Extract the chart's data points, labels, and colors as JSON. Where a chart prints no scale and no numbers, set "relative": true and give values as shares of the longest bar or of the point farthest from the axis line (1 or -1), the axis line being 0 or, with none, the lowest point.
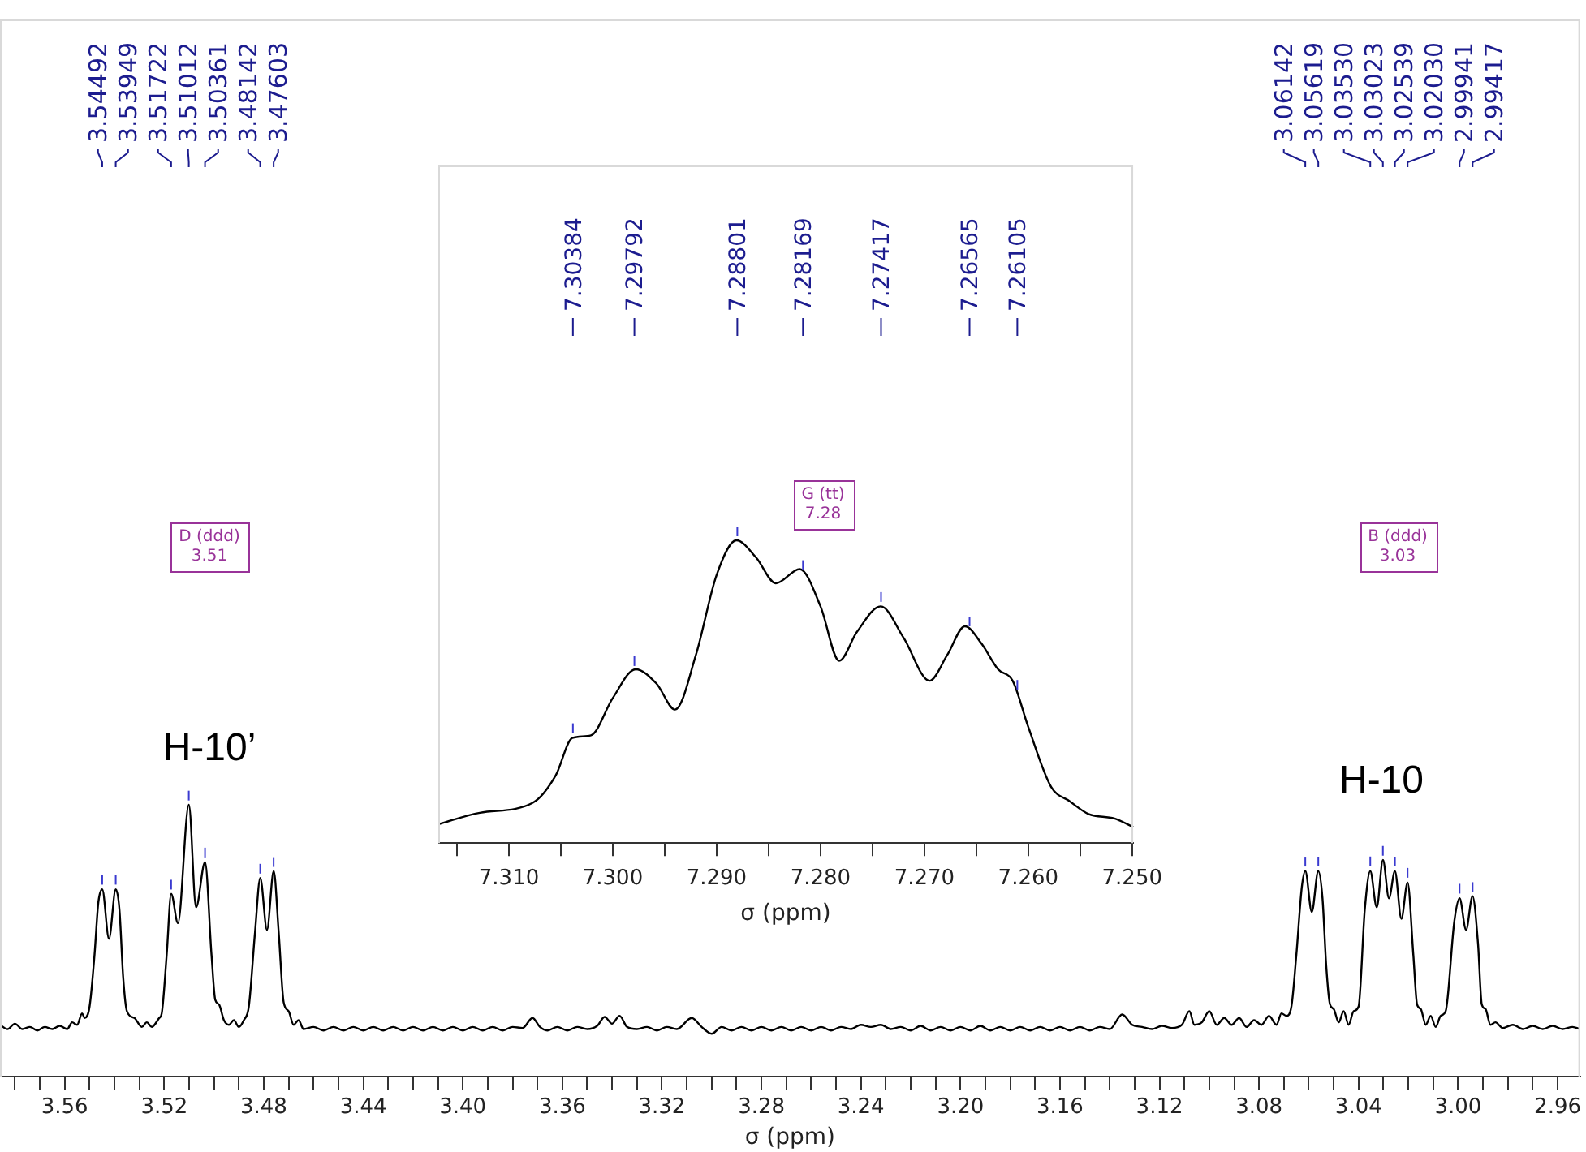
{
  "chart_data": [
    {
      "type": "line",
      "xlabel": "σ (ppm)",
      "relative": true,
      "color": "#000000",
      "grid": false,
      "xlim": [
        3.586,
        2.951
      ],
      "xticks": [
        {
          "value": 3.58,
          "label": null
        },
        {
          "value": 3.57,
          "label": null
        },
        {
          "value": 3.56,
          "label": "3.56"
        },
        {
          "value": 3.55,
          "label": null
        },
        {
          "value": 3.54,
          "label": null
        },
        {
          "value": 3.53,
          "label": null
        },
        {
          "value": 3.52,
          "label": "3.52"
        },
        {
          "value": 3.51,
          "label": null
        },
        {
          "value": 3.5,
          "label": null
        },
        {
          "value": 3.49,
          "label": null
        },
        {
          "value": 3.48,
          "label": "3.48"
        },
        {
          "value": 3.47,
          "label": null
        },
        {
          "value": 3.46,
          "label": null
        },
        {
          "value": 3.45,
          "label": null
        },
        {
          "value": 3.44,
          "label": "3.44"
        },
        {
          "value": 3.43,
          "label": null
        },
        {
          "value": 3.42,
          "label": null
        },
        {
          "value": 3.41,
          "label": null
        },
        {
          "value": 3.4,
          "label": "3.40"
        },
        {
          "value": 3.39,
          "label": null
        },
        {
          "value": 3.38,
          "label": null
        },
        {
          "value": 3.37,
          "label": null
        },
        {
          "value": 3.36,
          "label": "3.36"
        },
        {
          "value": 3.35,
          "label": null
        },
        {
          "value": 3.34,
          "label": null
        },
        {
          "value": 3.33,
          "label": null
        },
        {
          "value": 3.32,
          "label": "3.32"
        },
        {
          "value": 3.31,
          "label": null
        },
        {
          "value": 3.3,
          "label": null
        },
        {
          "value": 3.29,
          "label": null
        },
        {
          "value": 3.28,
          "label": "3.28"
        },
        {
          "value": 3.27,
          "label": null
        },
        {
          "value": 3.26,
          "label": null
        },
        {
          "value": 3.25,
          "label": null
        },
        {
          "value": 3.24,
          "label": "3.24"
        },
        {
          "value": 3.23,
          "label": null
        },
        {
          "value": 3.22,
          "label": null
        },
        {
          "value": 3.21,
          "label": null
        },
        {
          "value": 3.2,
          "label": "3.20"
        },
        {
          "value": 3.19,
          "label": null
        },
        {
          "value": 3.18,
          "label": null
        },
        {
          "value": 3.17,
          "label": null
        },
        {
          "value": 3.16,
          "label": "3.16"
        },
        {
          "value": 3.15,
          "label": null
        },
        {
          "value": 3.14,
          "label": null
        },
        {
          "value": 3.13,
          "label": null
        },
        {
          "value": 3.12,
          "label": "3.12"
        },
        {
          "value": 3.11,
          "label": null
        },
        {
          "value": 3.1,
          "label": null
        },
        {
          "value": 3.09,
          "label": null
        },
        {
          "value": 3.08,
          "label": "3.08"
        },
        {
          "value": 3.07,
          "label": null
        },
        {
          "value": 3.06,
          "label": null
        },
        {
          "value": 3.05,
          "label": null
        },
        {
          "value": 3.04,
          "label": "3.04"
        },
        {
          "value": 3.03,
          "label": null
        },
        {
          "value": 3.02,
          "label": null
        },
        {
          "value": 3.01,
          "label": null
        },
        {
          "value": 3.0,
          "label": "3.00"
        },
        {
          "value": 2.99,
          "label": null
        },
        {
          "value": 2.98,
          "label": null
        },
        {
          "value": 2.97,
          "label": null
        },
        {
          "value": 2.96,
          "label": "2.96"
        }
      ],
      "x": [
        3.586,
        3.583,
        3.58,
        3.577,
        3.574,
        3.571,
        3.568,
        3.565,
        3.562,
        3.559,
        3.557,
        3.555,
        3.553,
        3.552,
        3.55,
        3.548,
        3.5465,
        3.5449,
        3.5422,
        3.5395,
        3.538,
        3.5365,
        3.535,
        3.532,
        3.529,
        3.527,
        3.525,
        3.522,
        3.521,
        3.519,
        3.5172,
        3.5145,
        3.5101,
        3.5072,
        3.5036,
        3.501,
        3.4995,
        3.498,
        3.496,
        3.494,
        3.492,
        3.49,
        3.488,
        3.486,
        3.4835,
        3.4814,
        3.4787,
        3.476,
        3.474,
        3.472,
        3.47,
        3.468,
        3.466,
        3.464,
        3.46,
        3.456,
        3.452,
        3.448,
        3.444,
        3.44,
        3.436,
        3.432,
        3.428,
        3.424,
        3.42,
        3.416,
        3.412,
        3.408,
        3.404,
        3.4,
        3.396,
        3.392,
        3.388,
        3.384,
        3.38,
        3.376,
        3.372,
        3.369,
        3.366,
        3.362,
        3.358,
        3.354,
        3.35,
        3.346,
        3.343,
        3.34,
        3.337,
        3.334,
        3.33,
        3.326,
        3.322,
        3.318,
        3.314,
        3.308,
        3.304,
        3.3,
        3.296,
        3.292,
        3.288,
        3.284,
        3.28,
        3.276,
        3.272,
        3.268,
        3.264,
        3.26,
        3.256,
        3.252,
        3.248,
        3.244,
        3.24,
        3.236,
        3.232,
        3.228,
        3.224,
        3.22,
        3.216,
        3.212,
        3.208,
        3.204,
        3.2,
        3.196,
        3.192,
        3.188,
        3.184,
        3.18,
        3.176,
        3.172,
        3.168,
        3.164,
        3.16,
        3.156,
        3.152,
        3.148,
        3.144,
        3.14,
        3.135,
        3.131,
        3.127,
        3.123,
        3.119,
        3.115,
        3.111,
        3.108,
        3.106,
        3.103,
        3.1,
        3.097,
        3.094,
        3.091,
        3.088,
        3.085,
        3.082,
        3.079,
        3.076,
        3.073,
        3.071,
        3.069,
        3.067,
        3.065,
        3.0628,
        3.0614,
        3.0588,
        3.0562,
        3.0545,
        3.053,
        3.0515,
        3.05,
        3.048,
        3.046,
        3.044,
        3.042,
        3.04,
        3.0375,
        3.0353,
        3.0327,
        3.0302,
        3.0278,
        3.0254,
        3.0228,
        3.0203,
        3.018,
        3.0165,
        3.015,
        3.013,
        3.011,
        3.009,
        3.007,
        3.005,
        3.0015,
        2.9994,
        2.9968,
        2.9942,
        2.992,
        2.9905,
        2.989,
        2.987,
        2.985,
        2.982,
        2.978,
        2.974,
        2.97,
        2.966,
        2.962,
        2.958,
        2.954,
        2.951
      ],
      "values": [
        0.191,
        0.175,
        0.195,
        0.175,
        0.183,
        0.17,
        0.183,
        0.175,
        0.187,
        0.175,
        0.2,
        0.191,
        0.233,
        0.216,
        0.258,
        0.449,
        0.639,
        0.689,
        0.507,
        0.689,
        0.615,
        0.366,
        0.241,
        0.216,
        0.183,
        0.2,
        0.183,
        0.216,
        0.233,
        0.449,
        0.673,
        0.565,
        1,
        0.623,
        0.789,
        0.449,
        0.283,
        0.266,
        0.208,
        0.191,
        0.208,
        0.183,
        0.208,
        0.258,
        0.532,
        0.731,
        0.54,
        0.756,
        0.532,
        0.274,
        0.241,
        0.191,
        0.208,
        0.175,
        0.183,
        0.17,
        0.183,
        0.17,
        0.183,
        0.17,
        0.183,
        0.17,
        0.183,
        0.17,
        0.183,
        0.17,
        0.183,
        0.17,
        0.183,
        0.17,
        0.183,
        0.17,
        0.183,
        0.17,
        0.183,
        0.179,
        0.216,
        0.183,
        0.17,
        0.183,
        0.17,
        0.183,
        0.175,
        0.187,
        0.22,
        0.195,
        0.224,
        0.183,
        0.175,
        0.183,
        0.17,
        0.183,
        0.175,
        0.216,
        0.183,
        0.158,
        0.183,
        0.17,
        0.183,
        0.17,
        0.183,
        0.17,
        0.183,
        0.17,
        0.183,
        0.17,
        0.183,
        0.17,
        0.183,
        0.175,
        0.191,
        0.183,
        0.191,
        0.175,
        0.183,
        0.17,
        0.187,
        0.17,
        0.183,
        0.17,
        0.183,
        0.17,
        0.187,
        0.17,
        0.183,
        0.17,
        0.183,
        0.17,
        0.183,
        0.17,
        0.183,
        0.17,
        0.183,
        0.17,
        0.183,
        0.175,
        0.229,
        0.191,
        0.183,
        0.175,
        0.187,
        0.179,
        0.191,
        0.241,
        0.191,
        0.2,
        0.241,
        0.191,
        0.216,
        0.191,
        0.216,
        0.183,
        0.208,
        0.191,
        0.224,
        0.191,
        0.233,
        0.224,
        0.258,
        0.449,
        0.698,
        0.756,
        0.606,
        0.756,
        0.656,
        0.407,
        0.266,
        0.249,
        0.2,
        0.241,
        0.191,
        0.241,
        0.258,
        0.615,
        0.756,
        0.623,
        0.797,
        0.656,
        0.756,
        0.581,
        0.714,
        0.449,
        0.266,
        0.249,
        0.191,
        0.224,
        0.183,
        0.224,
        0.241,
        0.573,
        0.656,
        0.54,
        0.664,
        0.49,
        0.266,
        0.249,
        0.191,
        0.2,
        0.179,
        0.191,
        0.175,
        0.187,
        0.175,
        0.187,
        0.175,
        0.183,
        0.175
      ],
      "annotations": [
        {
          "text": "3.54492",
          "x": 3.54492
        },
        {
          "text": "3.53949",
          "x": 3.53949
        },
        {
          "text": "3.51722",
          "x": 3.51722
        },
        {
          "text": "3.51012",
          "x": 3.51012
        },
        {
          "text": "3.50361",
          "x": 3.50361
        },
        {
          "text": "3.48142",
          "x": 3.48142
        },
        {
          "text": "3.47603",
          "x": 3.47603
        },
        {
          "text": "3.06142",
          "x": 3.06142
        },
        {
          "text": "3.05619",
          "x": 3.05619
        },
        {
          "text": "3.03530",
          "x": 3.0353
        },
        {
          "text": "3.03023",
          "x": 3.03023
        },
        {
          "text": "3.02539",
          "x": 3.02539
        },
        {
          "text": "3.02030",
          "x": 3.0203
        },
        {
          "text": "2.99941",
          "x": 2.99941
        },
        {
          "text": "2.99417",
          "x": 2.99417
        },
        "D (ddd)\n3.51",
        "B (ddd)\n3.03",
        "H-10’",
        "H-10"
      ]
    },
    {
      "type": "line",
      "xlabel": "σ (ppm)",
      "relative": true,
      "color": "#000000",
      "grid": false,
      "xlim": [
        7.3168,
        7.2499
      ],
      "xticks": [
        {
          "value": 7.315,
          "label": null
        },
        {
          "value": 7.31,
          "label": "7.310"
        },
        {
          "value": 7.305,
          "label": null
        },
        {
          "value": 7.3,
          "label": "7.300"
        },
        {
          "value": 7.295,
          "label": null
        },
        {
          "value": 7.29,
          "label": "7.290"
        },
        {
          "value": 7.285,
          "label": null
        },
        {
          "value": 7.28,
          "label": "7.280"
        },
        {
          "value": 7.275,
          "label": null
        },
        {
          "value": 7.27,
          "label": "7.270"
        },
        {
          "value": 7.265,
          "label": null
        },
        {
          "value": 7.26,
          "label": "7.260"
        },
        {
          "value": 7.255,
          "label": null
        },
        {
          "value": 7.25,
          "label": "7.250"
        }
      ],
      "x": [
        7.3168,
        7.3128,
        7.3077,
        7.3055,
        7.3039,
        7.3021,
        7.3,
        7.2978,
        7.2958,
        7.294,
        7.292,
        7.29,
        7.2881,
        7.2862,
        7.2843,
        7.282,
        7.28,
        7.2782,
        7.2765,
        7.2742,
        7.272,
        7.2695,
        7.2678,
        7.2661,
        7.2645,
        7.2629,
        7.2615,
        7.26,
        7.2578,
        7.256,
        7.2542,
        7.2517,
        7.2499
      ],
      "values": [
        0.062,
        0.1,
        0.133,
        0.223,
        0.347,
        0.356,
        0.479,
        0.574,
        0.527,
        0.441,
        0.621,
        0.886,
        1,
        0.943,
        0.858,
        0.905,
        0.782,
        0.602,
        0.697,
        0.782,
        0.678,
        0.536,
        0.621,
        0.716,
        0.659,
        0.574,
        0.536,
        0.384,
        0.186,
        0.138,
        0.096,
        0.081,
        0.053
      ],
      "annotations": [
        {
          "text": "7.30384",
          "x": 7.30384
        },
        {
          "text": "7.29792",
          "x": 7.29792
        },
        {
          "text": "7.28801",
          "x": 7.28801
        },
        {
          "text": "7.28169",
          "x": 7.28169
        },
        {
          "text": "7.27417",
          "x": 7.27417
        },
        {
          "text": "7.26565",
          "x": 7.26565
        },
        {
          "text": "7.26105",
          "x": 7.26105
        },
        "G (tt)\n7.28"
      ]
    }
  ]
}
